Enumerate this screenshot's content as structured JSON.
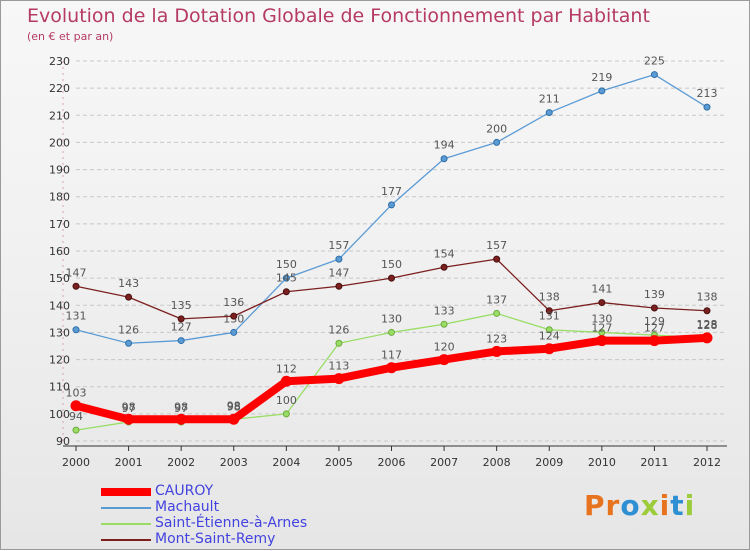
{
  "title": "Evolution de la Dotation Globale de Fonctionnement par Habitant",
  "subtitle": "(en € et par an)",
  "logo": {
    "text": "Proxiti",
    "letter_colors": [
      "#e8731e",
      "#e8731e",
      "#2f8fd3",
      "#9ccc3a",
      "#e8731e",
      "#2f8fd3",
      "#9ccc3a"
    ]
  },
  "chart_data": {
    "type": "line",
    "x": [
      2000,
      2001,
      2002,
      2003,
      2004,
      2005,
      2006,
      2007,
      2008,
      2009,
      2010,
      2011,
      2012
    ],
    "xlabel": "",
    "ylabel": "",
    "ylim": [
      90,
      230
    ],
    "yticks": [
      90,
      100,
      110,
      120,
      130,
      140,
      150,
      160,
      170,
      180,
      190,
      200,
      210,
      220,
      230
    ],
    "grid": "horizontal dashed",
    "legend_position": "bottom-left",
    "series": [
      {
        "name": "CAUROY",
        "color": "#ff0000",
        "values": [
          103,
          98,
          98,
          98,
          112,
          113,
          117,
          120,
          123,
          124,
          127,
          127,
          128
        ],
        "labels": [
          "103",
          "98",
          "98",
          "98",
          "112",
          "113",
          "117",
          "120",
          "123",
          "124",
          "127",
          "127",
          "128"
        ]
      },
      {
        "name": "Machault",
        "color": "#5b9bd5",
        "values": [
          131,
          126,
          127,
          130,
          150,
          157,
          177,
          194,
          200,
          211,
          219,
          225,
          213
        ],
        "labels": [
          "131",
          "126",
          "127",
          "130",
          "150",
          "157",
          "177",
          "194",
          "200",
          "211",
          "219",
          "225",
          "213"
        ]
      },
      {
        "name": "Saint-Étienne-à-Arnes",
        "color": "#99dd66",
        "values": [
          94,
          97,
          97,
          98,
          100,
          126,
          130,
          133,
          137,
          131,
          130,
          129,
          128
        ],
        "labels": [
          "94",
          "97",
          "97",
          "98",
          "100",
          "126",
          "130",
          "133",
          "137",
          "131",
          "130",
          "129",
          "128"
        ]
      },
      {
        "name": "Mont-Saint-Remy",
        "color": "#7b1f1f",
        "values": [
          147,
          143,
          135,
          136,
          145,
          147,
          150,
          154,
          157,
          138,
          141,
          139,
          138
        ],
        "labels": [
          "147",
          "143",
          "135",
          "136",
          "145",
          "147",
          "150",
          "154",
          "157",
          "138",
          "141",
          "139",
          "138"
        ]
      }
    ]
  }
}
